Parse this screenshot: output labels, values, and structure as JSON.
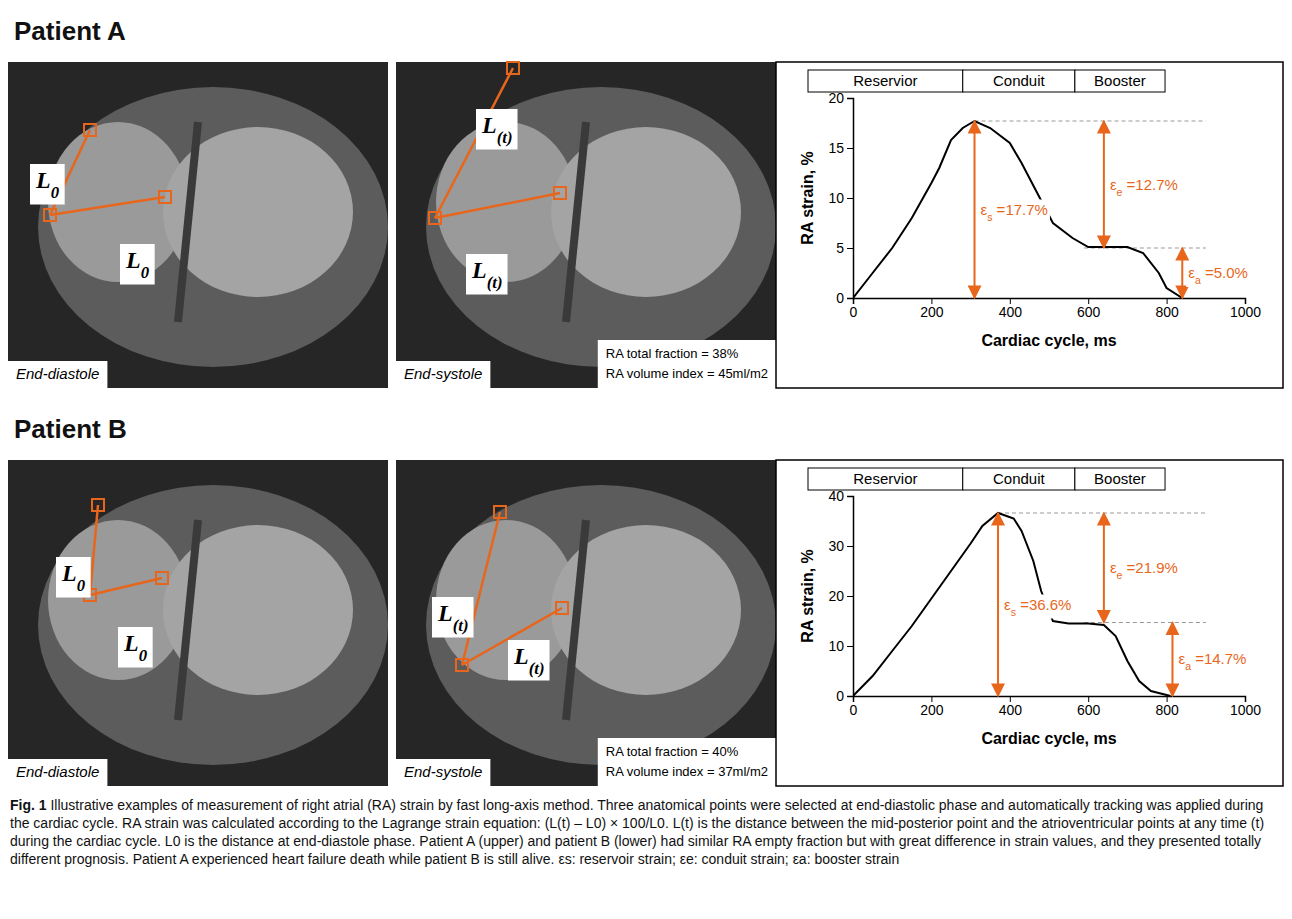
{
  "panels": [
    {
      "title": "Patient A",
      "images": [
        {
          "phase": "End-diastole",
          "length_labels": [
            "L0",
            "L0"
          ]
        },
        {
          "phase": "End-systole",
          "length_labels": [
            "L(t)",
            "L(t)"
          ],
          "info": [
            "RA total fraction = 38%",
            "RA volume index = 45ml/m2"
          ]
        }
      ]
    },
    {
      "title": "Patient B",
      "images": [
        {
          "phase": "End-diastole",
          "length_labels": [
            "L0",
            "L0"
          ]
        },
        {
          "phase": "End-systole",
          "length_labels": [
            "L(t)",
            "L(t)"
          ],
          "info": [
            "RA total fraction = 40%",
            "RA volume index = 37ml/m2"
          ]
        }
      ]
    }
  ],
  "chart_data": [
    {
      "type": "line",
      "phases": [
        "Reservior",
        "Conduit",
        "Booster"
      ],
      "x_label": "Cardiac cycle, ms",
      "y_label": "RA strain, %",
      "color": "#000000",
      "x": [
        0,
        50,
        100,
        150,
        200,
        220,
        250,
        280,
        310,
        350,
        400,
        430,
        470,
        510,
        560,
        600,
        650,
        700,
        740,
        780,
        800,
        840
      ],
      "values": [
        0,
        2.5,
        5,
        8,
        11.5,
        13,
        15.8,
        17,
        17.7,
        17,
        15.5,
        13.5,
        10.5,
        7.5,
        6,
        5.1,
        5.1,
        5.1,
        4.5,
        2.5,
        1,
        0
      ],
      "xlim": [
        0,
        1000
      ],
      "xticks": [
        0,
        200,
        400,
        600,
        800,
        1000
      ],
      "ylim": [
        0,
        20
      ],
      "yticks": [
        0,
        5,
        10,
        15,
        20
      ],
      "annotations": [
        {
          "label": "εs =17.7%",
          "x": 310,
          "from": 0,
          "to": 17.7
        },
        {
          "label": "εe =12.7%",
          "x": 640,
          "from": 5.0,
          "to": 17.7
        },
        {
          "label": "εa =5.0%",
          "x": 840,
          "from": 0,
          "to": 5.0
        }
      ]
    },
    {
      "type": "line",
      "phases": [
        "Reservior",
        "Conduit",
        "Booster"
      ],
      "x_label": "Cardiac cycle, ms",
      "y_label": "RA strain, %",
      "color": "#000000",
      "x": [
        0,
        50,
        100,
        150,
        200,
        250,
        300,
        330,
        370,
        410,
        430,
        460,
        480,
        510,
        550,
        600,
        640,
        670,
        700,
        730,
        760,
        810
      ],
      "values": [
        0,
        4,
        9,
        14,
        19.5,
        25,
        30.5,
        34,
        36.6,
        35.5,
        33,
        27,
        21,
        15,
        14.5,
        14.5,
        14.2,
        12,
        7,
        3,
        1,
        0
      ],
      "xlim": [
        0,
        1000
      ],
      "xticks": [
        0,
        200,
        400,
        600,
        800,
        1000
      ],
      "ylim": [
        0,
        40
      ],
      "yticks": [
        0,
        10,
        20,
        30,
        40
      ],
      "annotations": [
        {
          "label": "εs =36.6%",
          "x": 370,
          "from": 0,
          "to": 36.6
        },
        {
          "label": "εe =21.9%",
          "x": 640,
          "from": 14.7,
          "to": 36.6
        },
        {
          "label": "εa =14.7%",
          "x": 815,
          "from": 0,
          "to": 14.7
        }
      ]
    }
  ],
  "caption": {
    "label": "Fig. 1",
    "text": "Illustrative examples of measurement of right atrial (RA) strain by fast long-axis method. Three anatomical points were selected at end-diastolic phase and automatically tracking was applied during the cardiac cycle. RA strain was calculated according to the Lagrange strain equation: (L(t) – L0) × 100/L0. L(t) is the distance between the mid-posterior point and the atrioventricular points at any time (t) during the cardiac cycle. L0 is the distance at end-diastole phase. Patient A (upper) and patient B (lower) had similar RA empty fraction but with great difference in strain values, and they presented totally different prognosis. Patient A experienced heart failure death while patient B is still alive. εs: reservoir strain; εe: conduit strain; εa: booster strain"
  }
}
